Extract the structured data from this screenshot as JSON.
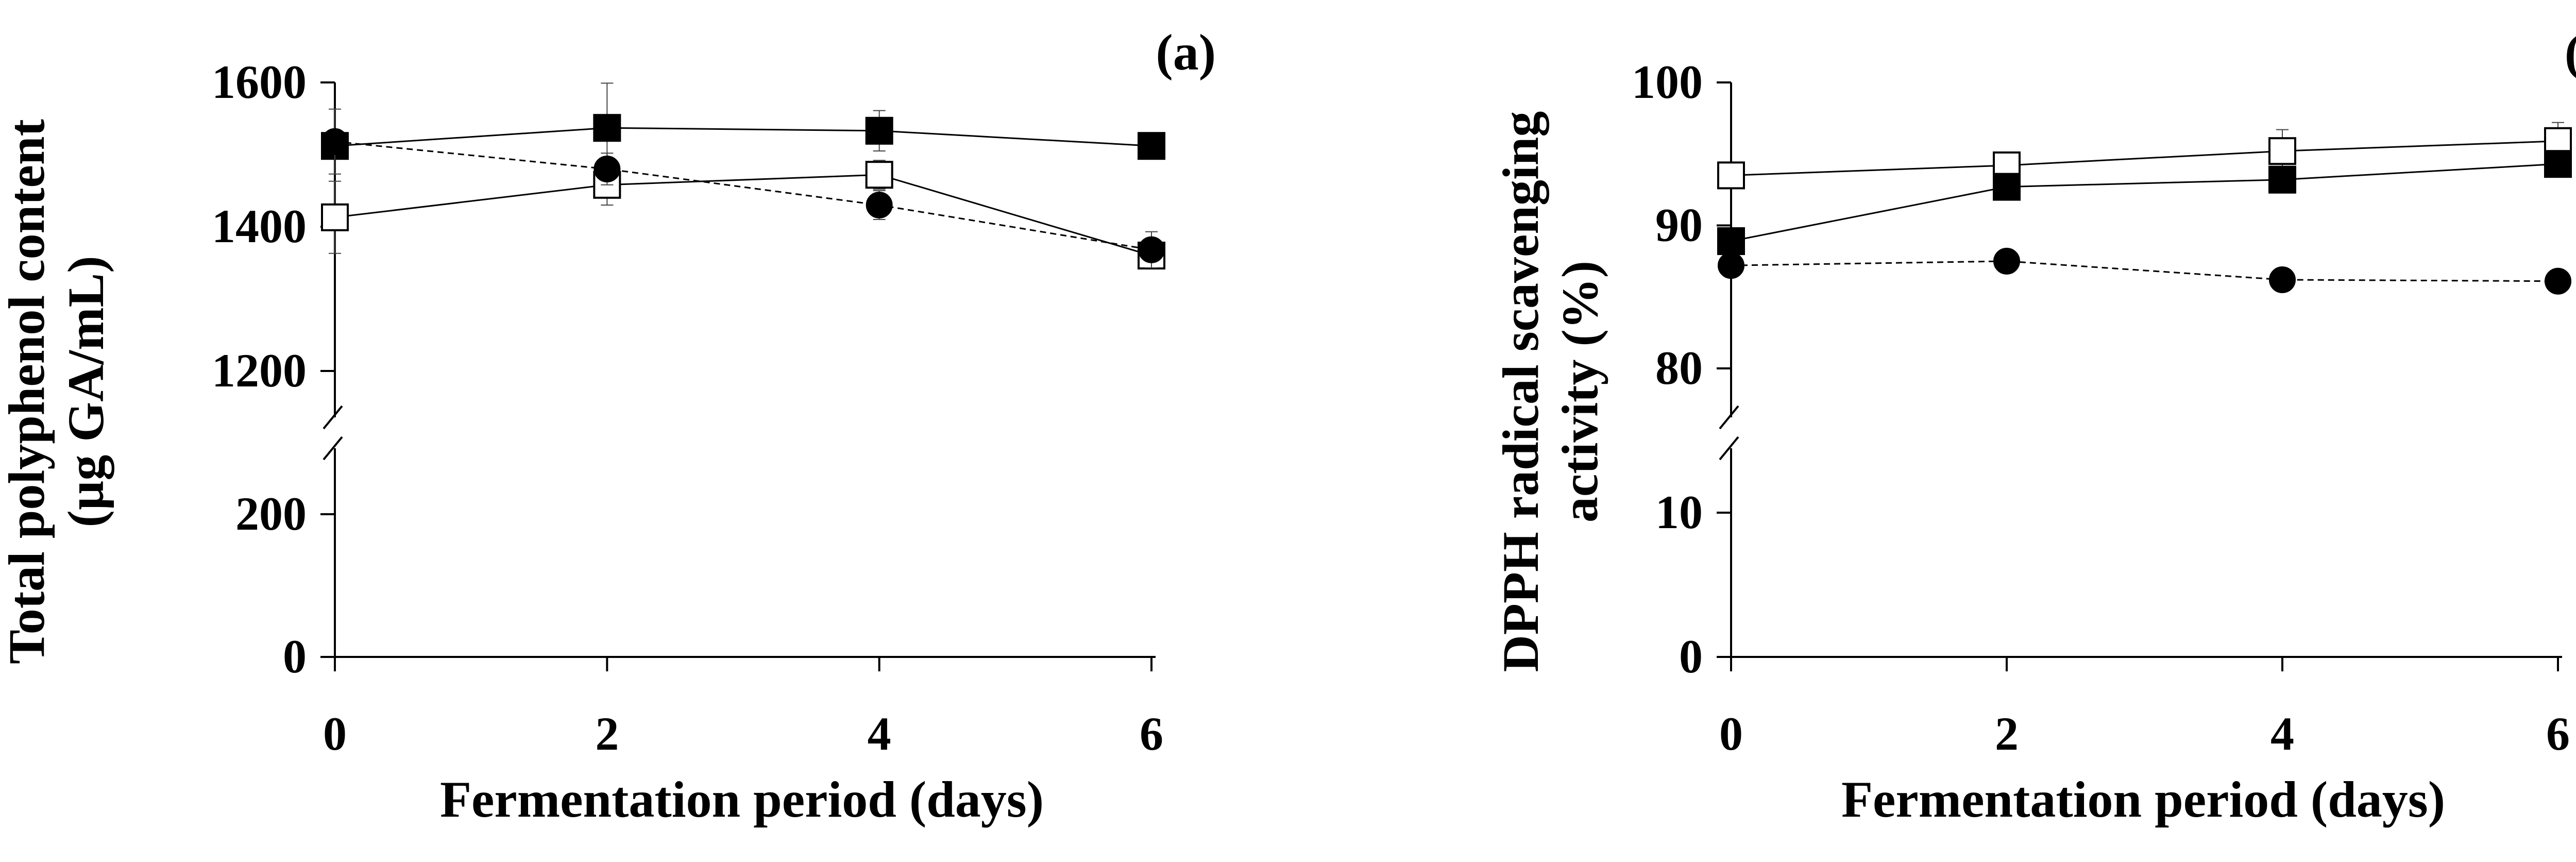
{
  "chart_data": [
    {
      "type": "line",
      "panel_label": "(a)",
      "xlabel": "Fermentation period (days)",
      "ylabel_line1": "Total polyphenol content",
      "ylabel_line2": "(µg GA/mL)",
      "x": [
        0,
        2,
        4,
        6
      ],
      "x_ticks": [
        "0",
        "2",
        "4",
        "6"
      ],
      "y_ticks_upper": [
        "1600",
        "1400",
        "1200"
      ],
      "y_ticks_lower": [
        "200",
        "0"
      ],
      "y_axis_break": true,
      "y_segments": {
        "lower": [
          0,
          200
        ],
        "upper": [
          1200,
          1600
        ]
      },
      "series": [
        {
          "marker": "filled-square",
          "line": "solid",
          "values": [
            1512,
            1537,
            1533,
            1512
          ],
          "errors": [
            10,
            62,
            28,
            8
          ]
        },
        {
          "marker": "open-square",
          "line": "solid",
          "values": [
            1413,
            1458,
            1472,
            1360
          ],
          "errors": [
            50,
            28,
            20,
            12
          ]
        },
        {
          "marker": "filled-circle",
          "line": "dashed",
          "values": [
            1518,
            1480,
            1430,
            1368
          ],
          "errors": [
            45,
            22,
            20,
            25
          ]
        }
      ],
      "grid": false
    },
    {
      "type": "line",
      "panel_label": "(b)",
      "xlabel": "Fermentation period (days)",
      "ylabel_line1": "DPPH radical scavenging",
      "ylabel_line2": "activity (%)",
      "x": [
        0,
        2,
        4,
        6
      ],
      "x_ticks": [
        "0",
        "2",
        "4",
        "6"
      ],
      "y_ticks_upper": [
        "100",
        "90",
        "80"
      ],
      "y_ticks_lower": [
        "10",
        "0"
      ],
      "y_axis_break": true,
      "y_segments": {
        "lower": [
          0,
          10
        ],
        "upper": [
          80,
          100
        ]
      },
      "series": [
        {
          "marker": "open-square",
          "line": "solid",
          "values": [
            93.5,
            94.2,
            95.2,
            95.9
          ],
          "errors": [
            0.3,
            0.8,
            1.5,
            1.3
          ]
        },
        {
          "marker": "filled-square",
          "line": "solid",
          "values": [
            88.9,
            92.7,
            93.2,
            94.3
          ],
          "errors": [
            0.3,
            0.4,
            0.4,
            0.4
          ]
        },
        {
          "marker": "filled-circle",
          "line": "dashed",
          "values": [
            87.2,
            87.5,
            86.2,
            86.1
          ],
          "errors": [
            0.3,
            0.3,
            0.3,
            0.3
          ]
        }
      ],
      "grid": false
    }
  ]
}
